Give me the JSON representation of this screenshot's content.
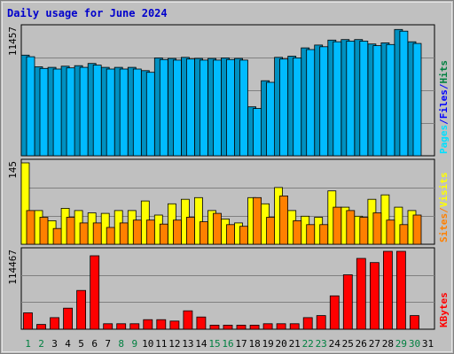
{
  "chart_data": {
    "type": "bar",
    "title": "Daily usage for June 2024",
    "categories": [
      "1",
      "2",
      "3",
      "4",
      "5",
      "6",
      "7",
      "8",
      "9",
      "10",
      "11",
      "12",
      "13",
      "14",
      "15",
      "16",
      "17",
      "18",
      "19",
      "20",
      "21",
      "22",
      "23",
      "24",
      "25",
      "26",
      "27",
      "28",
      "29",
      "30",
      "31"
    ],
    "weekend_days": [
      "1",
      "2",
      "8",
      "9",
      "15",
      "16",
      "22",
      "23",
      "29",
      "30"
    ],
    "grid": true,
    "panels": [
      {
        "name": "hits-panel",
        "max_label": "11457",
        "ymax": 11457,
        "legend": [
          "Pages",
          "Files",
          "Hits"
        ],
        "legend_colors": [
          "#00e0ff",
          "#0000ff",
          "#008040"
        ],
        "series": [
          {
            "name": "Hits",
            "color": "#0090c0",
            "values": [
              9050,
              8000,
              7950,
              8050,
              8100,
              8300,
              7950,
              7950,
              7950,
              7650,
              8800,
              8750,
              8850,
              8750,
              8750,
              8800,
              8750,
              4400,
              6750,
              8850,
              8950,
              9700,
              9950,
              10400,
              10450,
              10450,
              10050,
              10150,
              11350,
              10250,
              null
            ]
          },
          {
            "name": "Files",
            "color": "#00bbff",
            "values": [
              8900,
              7850,
              7800,
              7900,
              7950,
              8150,
              7800,
              7800,
              7800,
              7500,
              8650,
              8600,
              8700,
              8600,
              8600,
              8650,
              8600,
              4250,
              6600,
              8700,
              8800,
              9550,
              9800,
              10250,
              10300,
              10300,
              9900,
              10000,
              11200,
              10100,
              null
            ]
          }
        ]
      },
      {
        "name": "visits-panel",
        "max_label": "145",
        "ymax": 145,
        "legend": [
          "Sites",
          "/",
          "Visits"
        ],
        "legend_colors": [
          "#ff8000",
          "#ff8000",
          "#ffff00"
        ],
        "series": [
          {
            "name": "Visits",
            "color": "#ffff00",
            "values": [
              145,
              60,
              42,
              64,
              60,
              56,
              55,
              60,
              60,
              77,
              52,
              72,
              80,
              83,
              60,
              45,
              38,
              83,
              72,
              101,
              60,
              50,
              48,
              95,
              66,
              50,
              80,
              88,
              66,
              60,
              null
            ]
          },
          {
            "name": "Sites",
            "color": "#ff8000",
            "values": [
              60,
              48,
              28,
              48,
              38,
              38,
              30,
              38,
              43,
              43,
              36,
              43,
              48,
              40,
              55,
              35,
              32,
              83,
              48,
              86,
              42,
              35,
              35,
              66,
              60,
              48,
              56,
              43,
              35,
              52,
              null
            ]
          }
        ]
      },
      {
        "name": "kbytes-panel",
        "max_label": "114467",
        "ymax": 114467,
        "legend": [
          "KBytes"
        ],
        "legend_colors": [
          "#ff0000"
        ],
        "series": [
          {
            "name": "KBytes",
            "color": "#ff0000",
            "values": [
              24000,
              7000,
              17000,
              31000,
              57000,
              108000,
              8000,
              8000,
              8000,
              14000,
              14000,
              12000,
              27000,
              18000,
              6000,
              6000,
              6000,
              6000,
              8000,
              8000,
              8000,
              17000,
              20000,
              49000,
              80000,
              104000,
              98000,
              114467,
              114467,
              20000,
              null
            ]
          }
        ]
      }
    ]
  }
}
